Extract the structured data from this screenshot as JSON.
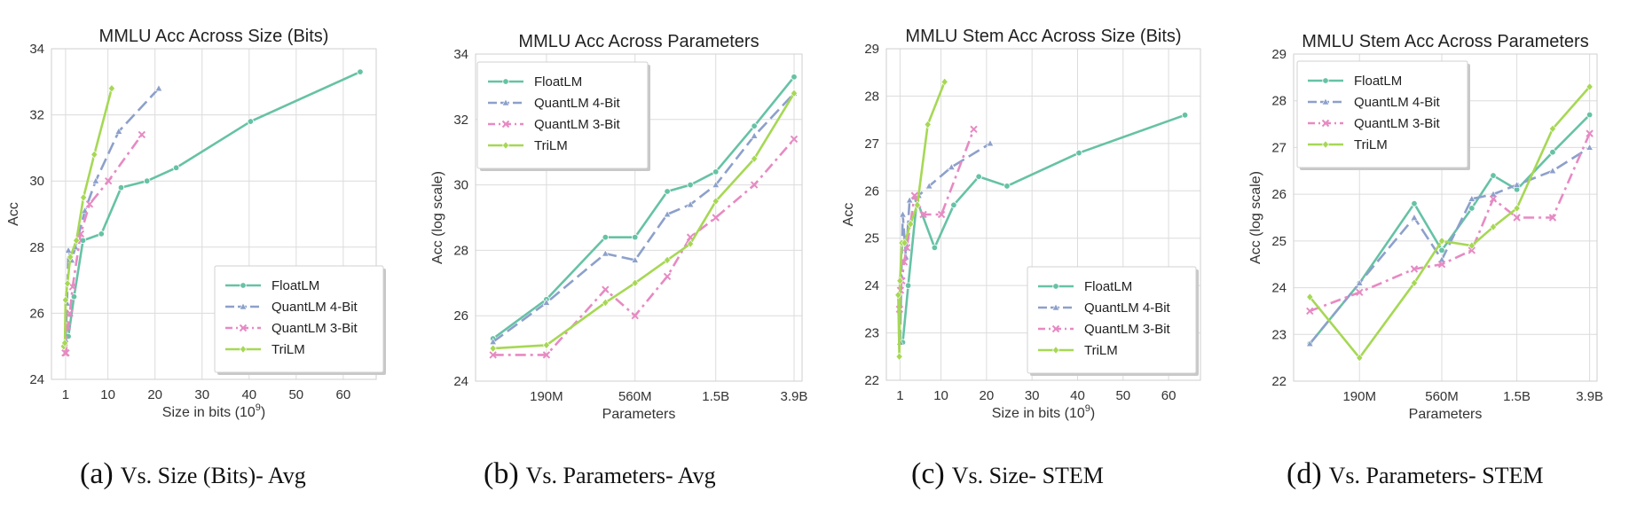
{
  "colors": {
    "FloatLM": "#66c2a5",
    "QuantLM 4-Bit": "#8da0cb",
    "QuantLM 3-Bit": "#e78ac3",
    "TriLM": "#a6d854",
    "grid": "#dcdcdc",
    "frame": "#cfcfcf"
  },
  "chart_data": [
    {
      "type": "line",
      "title": "MMLU Acc Across Size (Bits)",
      "xlabel": "Size in bits (10",
      "xlabel_sup": "9",
      "xlabel_tail": ")",
      "ylabel": "Acc",
      "xlim": [
        -2,
        67
      ],
      "ylim": [
        24,
        34
      ],
      "xticks": [
        1,
        10,
        20,
        30,
        40,
        50,
        60
      ],
      "yticks": [
        24,
        26,
        28,
        30,
        32,
        34
      ],
      "legend": "lower-right",
      "caption_letter": "(a)",
      "caption_text": "Vs. Size (Bits)- Avg",
      "series": [
        {
          "name": "FloatLM",
          "x": [
            1.6,
            2.8,
            4.7,
            8.6,
            12.8,
            18.3,
            24.5,
            40.3,
            63.6
          ],
          "y": [
            25.3,
            26.5,
            28.2,
            28.4,
            29.8,
            30.0,
            30.4,
            31.8,
            33.3
          ]
        },
        {
          "name": "QuantLM 4-Bit",
          "x": [
            1.0,
            1.3,
            1.6,
            2.3,
            3.1,
            5.1,
            7.4,
            12.3,
            20.8
          ],
          "y": [
            25.2,
            26.3,
            27.9,
            27.6,
            28.0,
            29.1,
            30.0,
            31.5,
            32.8
          ]
        },
        {
          "name": "QuantLM 3-Bit",
          "x": [
            0.9,
            1.1,
            1.4,
            1.9,
            2.5,
            4.2,
            6.1,
            10.1,
            17.2
          ],
          "y": [
            24.8,
            24.8,
            25.6,
            26.0,
            26.8,
            28.4,
            29.3,
            30.0,
            31.4
          ]
        },
        {
          "name": "TriLM",
          "x": [
            0.6,
            0.85,
            1.0,
            1.4,
            2.0,
            3.3,
            4.8,
            7.1,
            10.8
          ],
          "y": [
            25.0,
            25.1,
            26.4,
            26.9,
            27.7,
            28.2,
            29.5,
            30.8,
            32.8
          ]
        }
      ]
    },
    {
      "type": "line",
      "title": "MMLU Acc Across Parameters",
      "xlabel": "Parameters",
      "ylabel": "Acc (log scale)",
      "x_scale": "log",
      "xlim": [
        80,
        4300
      ],
      "ylim": [
        24,
        34
      ],
      "xticks": [
        190,
        560,
        1500,
        3900
      ],
      "xtick_labels": [
        "190M",
        "560M",
        "1.5B",
        "3.9B"
      ],
      "yticks": [
        24,
        26,
        28,
        30,
        32,
        34
      ],
      "legend": "upper-left",
      "caption_letter": "(b)",
      "caption_text": "Vs. Parameters- Avg",
      "x": [
        99,
        190,
        390,
        560,
        830,
        1100,
        1500,
        2400,
        3900
      ],
      "series": [
        {
          "name": "FloatLM",
          "y": [
            25.3,
            26.5,
            28.4,
            28.4,
            29.8,
            30.0,
            30.4,
            31.8,
            33.3
          ]
        },
        {
          "name": "QuantLM 4-Bit",
          "y": [
            25.2,
            26.4,
            27.9,
            27.7,
            29.1,
            29.4,
            30.0,
            31.5,
            32.8
          ]
        },
        {
          "name": "QuantLM 3-Bit",
          "y": [
            24.8,
            24.8,
            26.8,
            26.0,
            27.2,
            28.4,
            29.0,
            30.0,
            31.4
          ]
        },
        {
          "name": "TriLM",
          "y": [
            25.0,
            25.1,
            26.4,
            27.0,
            27.7,
            28.2,
            29.5,
            30.8,
            32.8
          ]
        }
      ]
    },
    {
      "type": "line",
      "title": "MMLU Stem Acc Across Size (Bits)",
      "xlabel": "Size in bits (10",
      "xlabel_sup": "9",
      "xlabel_tail": ")",
      "ylabel": "Acc",
      "xlim": [
        -2,
        67
      ],
      "ylim": [
        22,
        29
      ],
      "xticks": [
        1,
        10,
        20,
        30,
        40,
        50,
        60
      ],
      "yticks": [
        22,
        23,
        24,
        25,
        26,
        27,
        28,
        29
      ],
      "legend": "lower-right",
      "caption_letter": "(c)",
      "caption_text": "Vs. Size- STEM",
      "series": [
        {
          "name": "FloatLM",
          "x": [
            1.6,
            2.8,
            4.7,
            8.6,
            12.8,
            18.3,
            24.5,
            40.3,
            63.6
          ],
          "y": [
            22.8,
            24.0,
            25.8,
            24.8,
            25.7,
            26.3,
            26.1,
            26.8,
            27.6
          ]
        },
        {
          "name": "QuantLM 4-Bit",
          "x": [
            1.0,
            1.3,
            1.6,
            2.3,
            3.1,
            5.1,
            7.4,
            12.3,
            20.8
          ],
          "y": [
            22.8,
            24.2,
            25.5,
            24.6,
            25.8,
            25.9,
            26.1,
            26.5,
            27.0
          ]
        },
        {
          "name": "QuantLM 3-Bit",
          "x": [
            0.9,
            1.1,
            1.4,
            1.9,
            2.5,
            4.2,
            6.1,
            10.1,
            17.2
          ],
          "y": [
            23.5,
            23.9,
            24.1,
            24.5,
            24.8,
            25.9,
            25.5,
            25.5,
            27.3
          ]
        },
        {
          "name": "TriLM",
          "x": [
            0.6,
            0.85,
            1.0,
            1.4,
            2.0,
            3.3,
            4.8,
            7.1,
            10.8
          ],
          "y": [
            23.8,
            22.5,
            24.1,
            24.9,
            24.9,
            25.3,
            25.7,
            27.4,
            28.3
          ]
        }
      ]
    },
    {
      "type": "line",
      "title": "MMLU Stem Acc Across Parameters",
      "xlabel": "Parameters",
      "ylabel": "Acc (log scale)",
      "x_scale": "log",
      "xlim": [
        80,
        4300
      ],
      "ylim": [
        22,
        29
      ],
      "xticks": [
        190,
        560,
        1500,
        3900
      ],
      "xtick_labels": [
        "190M",
        "560M",
        "1.5B",
        "3.9B"
      ],
      "yticks": [
        22,
        23,
        24,
        25,
        26,
        27,
        28,
        29
      ],
      "legend": "upper-left",
      "caption_letter": "(d)",
      "caption_text": "Vs. Parameters- STEM",
      "x": [
        99,
        190,
        390,
        560,
        830,
        1100,
        1500,
        2400,
        3900
      ],
      "series": [
        {
          "name": "FloatLM",
          "y": [
            22.8,
            24.1,
            25.8,
            24.8,
            25.7,
            26.4,
            26.1,
            26.9,
            27.7
          ]
        },
        {
          "name": "QuantLM 4-Bit",
          "y": [
            22.8,
            24.1,
            25.5,
            24.6,
            25.9,
            26.0,
            26.2,
            26.5,
            27.0
          ]
        },
        {
          "name": "QuantLM 3-Bit",
          "y": [
            23.5,
            23.9,
            24.4,
            24.5,
            24.8,
            25.9,
            25.5,
            25.5,
            27.3
          ]
        },
        {
          "name": "TriLM",
          "y": [
            23.8,
            22.5,
            24.1,
            25.0,
            24.9,
            25.3,
            25.7,
            27.4,
            28.3
          ]
        }
      ]
    }
  ]
}
